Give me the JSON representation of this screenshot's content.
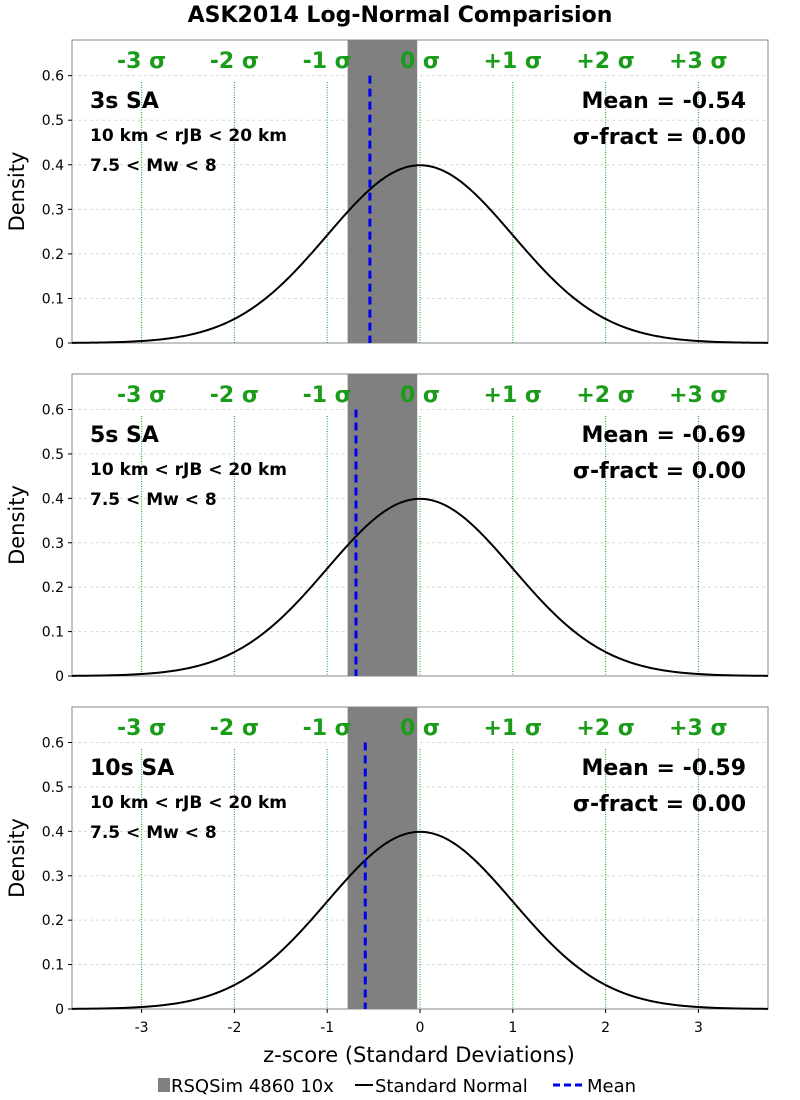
{
  "colors": {
    "sigma_lines": "#1a9c1a",
    "shade": "#808080",
    "normal_curve": "#000000",
    "mean_line": "#0000ee",
    "grid": "#d8d8d8",
    "frame": "#888888"
  },
  "chart_data": {
    "type": "line",
    "title": "ASK2014 Log-Normal Comparision",
    "xlabel": "z-score (Standard Deviations)",
    "ylabel": "Density",
    "xlim": [
      -3.75,
      3.75
    ],
    "ylim": [
      0,
      0.68
    ],
    "x_ticks": [
      -3,
      -2,
      -1,
      0,
      1,
      2,
      3
    ],
    "x_tick_labels": [
      "-3",
      "-2",
      "-1",
      "0",
      "1",
      "2",
      "3"
    ],
    "y_ticks": [
      0,
      0.1,
      0.2,
      0.3,
      0.4,
      0.5,
      0.6
    ],
    "y_tick_labels": [
      "0",
      "0.1",
      "0.2",
      "0.3",
      "0.4",
      "0.5",
      "0.6"
    ],
    "grid": "horizontal, dashed",
    "sigma_lines": [
      -3,
      -2,
      -1,
      0,
      1,
      2,
      3
    ],
    "sigma_labels": [
      "-3 σ",
      "-2 σ",
      "-1 σ",
      "0 σ",
      "+1 σ",
      "+2 σ",
      "+3 σ"
    ],
    "legend": {
      "placement": "bottom-center",
      "entries": [
        "RSQSim 4860 10x",
        "Standard Normal",
        "Mean"
      ]
    },
    "panels": [
      {
        "period_label": "3s SA",
        "distance_label": "10 km < rJB < 20 km",
        "magnitude_label": "7.5 < Mw < 8",
        "mean_label": "Mean = -0.54",
        "sigma_fract_label": "σ-fract = 0.00",
        "mean": -0.54,
        "shaded_range": [
          -0.78,
          -0.03
        ],
        "mean_line_top": 0.6,
        "series": [
          {
            "name": "Standard Normal",
            "mean": 0,
            "std": 1
          }
        ]
      },
      {
        "period_label": "5s SA",
        "distance_label": "10 km < rJB < 20 km",
        "magnitude_label": "7.5 < Mw < 8",
        "mean_label": "Mean = -0.69",
        "sigma_fract_label": "σ-fract = 0.00",
        "mean": -0.69,
        "shaded_range": [
          -0.78,
          -0.03
        ],
        "mean_line_top": 0.6,
        "series": [
          {
            "name": "Standard Normal",
            "mean": 0,
            "std": 1
          }
        ]
      },
      {
        "period_label": "10s SA",
        "distance_label": "10 km < rJB < 20 km",
        "magnitude_label": "7.5 < Mw < 8",
        "mean_label": "Mean = -0.59",
        "sigma_fract_label": "σ-fract = 0.00",
        "mean": -0.59,
        "shaded_range": [
          -0.78,
          -0.03
        ],
        "mean_line_top": 0.6,
        "series": [
          {
            "name": "Standard Normal",
            "mean": 0,
            "std": 1
          }
        ]
      }
    ]
  }
}
